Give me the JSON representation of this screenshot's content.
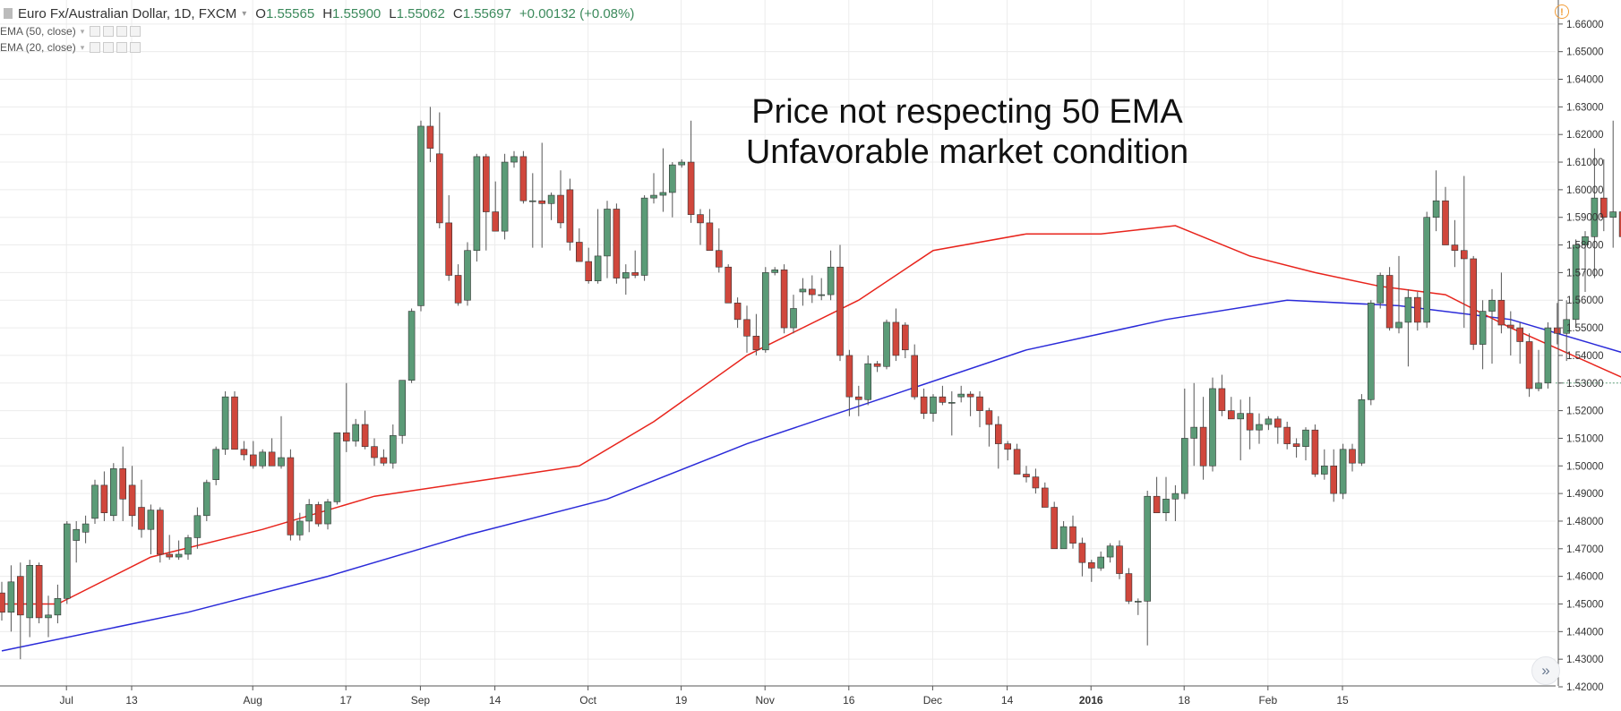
{
  "header": {
    "symbol": "Euro Fx/Australian Dollar, 1D, FXCM",
    "open": {
      "label": "O",
      "value": "1.55565"
    },
    "high": {
      "label": "H",
      "value": "1.55900"
    },
    "low": {
      "label": "L",
      "value": "1.55062"
    },
    "close": {
      "label": "C",
      "value": "1.55697"
    },
    "change": "+0.00132 (+0.08%)"
  },
  "indicators": [
    {
      "label": "EMA (50, close)",
      "color": "#2b2bd9"
    },
    {
      "label": "EMA (20, close)",
      "color": "#e8241c"
    }
  ],
  "annotation": {
    "line1": "Price not respecting 50 EMA",
    "line2": "Unfavorable market condition"
  },
  "icons": {
    "alert": "alert-icon",
    "scroll": "scroll-right-icon",
    "symbol": "symbol-icon"
  },
  "colors": {
    "up": "#5b9b77",
    "down": "#d0473c",
    "grid": "#ececec",
    "ema20": "#e8241c",
    "ema50": "#2b2bd9"
  },
  "chart_data": {
    "type": "candlestick",
    "title": "",
    "x_ticks": [
      "Jul",
      "13",
      "Aug",
      "17",
      "Sep",
      "14",
      "Oct",
      "19",
      "Nov",
      "16",
      "Dec",
      "14",
      "2016",
      "18",
      "Feb",
      "15"
    ],
    "y_ticks": [
      "1.67000",
      "1.66000",
      "1.65000",
      "1.64000",
      "1.63000",
      "1.62000",
      "1.61000",
      "1.60000",
      "1.59000",
      "1.58000",
      "1.57000",
      "1.56000",
      "1.55000",
      "1.54000",
      "1.53000",
      "1.52000",
      "1.51000",
      "1.50000",
      "1.49000",
      "1.48000",
      "1.47000",
      "1.46000",
      "1.45000",
      "1.44000",
      "1.43000",
      "1.42000"
    ],
    "ylim": [
      1.42,
      1.67
    ],
    "grid": true,
    "last_price": "1.53000",
    "candles": [
      [
        1.454,
        1.458,
        1.444,
        1.447
      ],
      [
        1.447,
        1.464,
        1.44,
        1.458
      ],
      [
        1.46,
        1.465,
        1.43,
        1.446
      ],
      [
        1.445,
        1.466,
        1.438,
        1.464
      ],
      [
        1.464,
        1.465,
        1.443,
        1.445
      ],
      [
        1.445,
        1.453,
        1.438,
        1.446
      ],
      [
        1.446,
        1.457,
        1.443,
        1.452
      ],
      [
        1.452,
        1.48,
        1.45,
        1.479
      ],
      [
        1.473,
        1.48,
        1.465,
        1.477
      ],
      [
        1.476,
        1.482,
        1.472,
        1.479
      ],
      [
        1.481,
        1.495,
        1.479,
        1.493
      ],
      [
        1.493,
        1.498,
        1.48,
        1.483
      ],
      [
        1.482,
        1.501,
        1.48,
        1.499
      ],
      [
        1.499,
        1.507,
        1.48,
        1.488
      ],
      [
        1.493,
        1.5,
        1.478,
        1.482
      ],
      [
        1.485,
        1.495,
        1.474,
        1.477
      ],
      [
        1.477,
        1.486,
        1.468,
        1.484
      ],
      [
        1.484,
        1.485,
        1.465,
        1.468
      ],
      [
        1.468,
        1.475,
        1.466,
        1.467
      ],
      [
        1.467,
        1.473,
        1.466,
        1.468
      ],
      [
        1.468,
        1.475,
        1.466,
        1.474
      ],
      [
        1.474,
        1.485,
        1.47,
        1.482
      ],
      [
        1.482,
        1.495,
        1.48,
        1.494
      ],
      [
        1.495,
        1.507,
        1.493,
        1.506
      ],
      [
        1.506,
        1.527,
        1.504,
        1.525
      ],
      [
        1.525,
        1.527,
        1.506,
        1.506
      ],
      [
        1.506,
        1.509,
        1.502,
        1.504
      ],
      [
        1.504,
        1.509,
        1.499,
        1.5
      ],
      [
        1.5,
        1.506,
        1.499,
        1.505
      ],
      [
        1.505,
        1.51,
        1.5,
        1.5
      ],
      [
        1.5,
        1.518,
        1.499,
        1.503
      ],
      [
        1.503,
        1.506,
        1.473,
        1.475
      ],
      [
        1.475,
        1.483,
        1.473,
        1.48
      ],
      [
        1.48,
        1.488,
        1.476,
        1.486
      ],
      [
        1.486,
        1.487,
        1.478,
        1.479
      ],
      [
        1.479,
        1.488,
        1.477,
        1.487
      ],
      [
        1.487,
        1.512,
        1.486,
        1.512
      ],
      [
        1.512,
        1.53,
        1.505,
        1.509
      ],
      [
        1.509,
        1.517,
        1.507,
        1.515
      ],
      [
        1.515,
        1.52,
        1.506,
        1.507
      ],
      [
        1.507,
        1.51,
        1.5,
        1.503
      ],
      [
        1.503,
        1.506,
        1.5,
        1.501
      ],
      [
        1.501,
        1.515,
        1.499,
        1.511
      ],
      [
        1.511,
        1.531,
        1.508,
        1.531
      ],
      [
        1.531,
        1.557,
        1.53,
        1.556
      ],
      [
        1.558,
        1.625,
        1.556,
        1.623
      ],
      [
        1.623,
        1.63,
        1.61,
        1.615
      ],
      [
        1.613,
        1.628,
        1.586,
        1.588
      ],
      [
        1.588,
        1.598,
        1.567,
        1.569
      ],
      [
        1.569,
        1.573,
        1.558,
        1.559
      ],
      [
        1.56,
        1.581,
        1.558,
        1.578
      ],
      [
        1.578,
        1.613,
        1.574,
        1.612
      ],
      [
        1.612,
        1.613,
        1.578,
        1.592
      ],
      [
        1.592,
        1.603,
        1.585,
        1.585
      ],
      [
        1.585,
        1.613,
        1.582,
        1.61
      ],
      [
        1.61,
        1.614,
        1.608,
        1.612
      ],
      [
        1.612,
        1.614,
        1.595,
        1.596
      ],
      [
        1.596,
        1.606,
        1.579,
        1.596
      ],
      [
        1.596,
        1.617,
        1.579,
        1.595
      ],
      [
        1.595,
        1.599,
        1.589,
        1.598
      ],
      [
        1.598,
        1.607,
        1.586,
        1.588
      ],
      [
        1.6,
        1.604,
        1.578,
        1.581
      ],
      [
        1.581,
        1.586,
        1.574,
        1.574
      ],
      [
        1.574,
        1.579,
        1.566,
        1.567
      ],
      [
        1.567,
        1.593,
        1.566,
        1.576
      ],
      [
        1.576,
        1.596,
        1.568,
        1.593
      ],
      [
        1.593,
        1.595,
        1.566,
        1.568
      ],
      [
        1.568,
        1.573,
        1.562,
        1.57
      ],
      [
        1.57,
        1.578,
        1.568,
        1.569
      ],
      [
        1.569,
        1.598,
        1.567,
        1.597
      ],
      [
        1.597,
        1.606,
        1.595,
        1.598
      ],
      [
        1.598,
        1.615,
        1.592,
        1.599
      ],
      [
        1.599,
        1.61,
        1.59,
        1.609
      ],
      [
        1.609,
        1.611,
        1.608,
        1.61
      ],
      [
        1.61,
        1.625,
        1.588,
        1.591
      ],
      [
        1.591,
        1.593,
        1.58,
        1.588
      ],
      [
        1.588,
        1.593,
        1.578,
        1.578
      ],
      [
        1.578,
        1.586,
        1.57,
        1.572
      ],
      [
        1.572,
        1.573,
        1.559,
        1.559
      ],
      [
        1.559,
        1.561,
        1.55,
        1.553
      ],
      [
        1.553,
        1.558,
        1.541,
        1.547
      ],
      [
        1.547,
        1.555,
        1.54,
        1.542
      ],
      [
        1.542,
        1.572,
        1.541,
        1.57
      ],
      [
        1.57,
        1.572,
        1.569,
        1.571
      ],
      [
        1.571,
        1.573,
        1.548,
        1.55
      ],
      [
        1.55,
        1.562,
        1.548,
        1.557
      ],
      [
        1.563,
        1.568,
        1.558,
        1.564
      ],
      [
        1.564,
        1.569,
        1.559,
        1.562
      ],
      [
        1.562,
        1.568,
        1.56,
        1.562
      ],
      [
        1.562,
        1.578,
        1.56,
        1.572
      ],
      [
        1.572,
        1.58,
        1.538,
        1.54
      ],
      [
        1.54,
        1.542,
        1.518,
        1.525
      ],
      [
        1.525,
        1.529,
        1.518,
        1.524
      ],
      [
        1.524,
        1.54,
        1.522,
        1.537
      ],
      [
        1.537,
        1.538,
        1.534,
        1.536
      ],
      [
        1.536,
        1.553,
        1.535,
        1.552
      ],
      [
        1.552,
        1.557,
        1.538,
        1.54
      ],
      [
        1.551,
        1.552,
        1.539,
        1.542
      ],
      [
        1.54,
        1.544,
        1.524,
        1.525
      ],
      [
        1.525,
        1.528,
        1.517,
        1.519
      ],
      [
        1.519,
        1.526,
        1.516,
        1.525
      ],
      [
        1.525,
        1.529,
        1.522,
        1.523
      ],
      [
        1.523,
        1.527,
        1.511,
        1.523
      ],
      [
        1.525,
        1.529,
        1.523,
        1.526
      ],
      [
        1.526,
        1.527,
        1.518,
        1.525
      ],
      [
        1.525,
        1.527,
        1.514,
        1.52
      ],
      [
        1.52,
        1.521,
        1.507,
        1.515
      ],
      [
        1.515,
        1.518,
        1.499,
        1.508
      ],
      [
        1.508,
        1.509,
        1.502,
        1.506
      ],
      [
        1.506,
        1.508,
        1.498,
        1.497
      ],
      [
        1.497,
        1.5,
        1.494,
        1.496
      ],
      [
        1.496,
        1.499,
        1.49,
        1.492
      ],
      [
        1.492,
        1.494,
        1.485,
        1.485
      ],
      [
        1.485,
        1.487,
        1.47,
        1.47
      ],
      [
        1.47,
        1.48,
        1.47,
        1.478
      ],
      [
        1.478,
        1.482,
        1.47,
        1.472
      ],
      [
        1.472,
        1.474,
        1.46,
        1.465
      ],
      [
        1.465,
        1.466,
        1.458,
        1.463
      ],
      [
        1.463,
        1.469,
        1.462,
        1.467
      ],
      [
        1.467,
        1.472,
        1.465,
        1.471
      ],
      [
        1.471,
        1.473,
        1.459,
        1.461
      ],
      [
        1.461,
        1.463,
        1.45,
        1.451
      ],
      [
        1.451,
        1.452,
        1.446,
        1.451
      ],
      [
        1.451,
        1.491,
        1.435,
        1.489
      ],
      [
        1.489,
        1.496,
        1.485,
        1.483
      ],
      [
        1.483,
        1.496,
        1.48,
        1.488
      ],
      [
        1.488,
        1.493,
        1.48,
        1.49
      ],
      [
        1.49,
        1.528,
        1.488,
        1.51
      ],
      [
        1.51,
        1.53,
        1.5,
        1.514
      ],
      [
        1.514,
        1.525,
        1.495,
        1.5
      ],
      [
        1.5,
        1.532,
        1.498,
        1.528
      ],
      [
        1.528,
        1.533,
        1.518,
        1.52
      ],
      [
        1.52,
        1.525,
        1.518,
        1.517
      ],
      [
        1.517,
        1.524,
        1.502,
        1.519
      ],
      [
        1.519,
        1.525,
        1.506,
        1.513
      ],
      [
        1.513,
        1.519,
        1.508,
        1.515
      ],
      [
        1.515,
        1.518,
        1.513,
        1.517
      ],
      [
        1.517,
        1.518,
        1.508,
        1.514
      ],
      [
        1.514,
        1.516,
        1.506,
        1.508
      ],
      [
        1.508,
        1.51,
        1.503,
        1.507
      ],
      [
        1.507,
        1.514,
        1.502,
        1.513
      ],
      [
        1.513,
        1.515,
        1.496,
        1.497
      ],
      [
        1.497,
        1.506,
        1.495,
        1.5
      ],
      [
        1.5,
        1.506,
        1.487,
        1.49
      ],
      [
        1.49,
        1.508,
        1.488,
        1.506
      ],
      [
        1.506,
        1.508,
        1.498,
        1.501
      ],
      [
        1.501,
        1.526,
        1.5,
        1.524
      ],
      [
        1.524,
        1.56,
        1.522,
        1.559
      ],
      [
        1.559,
        1.57,
        1.557,
        1.569
      ],
      [
        1.569,
        1.572,
        1.549,
        1.55
      ],
      [
        1.55,
        1.576,
        1.548,
        1.552
      ],
      [
        1.552,
        1.564,
        1.536,
        1.561
      ],
      [
        1.561,
        1.563,
        1.549,
        1.552
      ],
      [
        1.552,
        1.592,
        1.55,
        1.59
      ],
      [
        1.59,
        1.607,
        1.585,
        1.596
      ],
      [
        1.596,
        1.601,
        1.58,
        1.58
      ],
      [
        1.58,
        1.589,
        1.572,
        1.578
      ],
      [
        1.578,
        1.605,
        1.55,
        1.575
      ],
      [
        1.575,
        1.576,
        1.542,
        1.544
      ],
      [
        1.544,
        1.56,
        1.535,
        1.556
      ],
      [
        1.556,
        1.564,
        1.537,
        1.56
      ],
      [
        1.56,
        1.57,
        1.548,
        1.551
      ],
      [
        1.551,
        1.556,
        1.54,
        1.55
      ],
      [
        1.55,
        1.552,
        1.537,
        1.545
      ],
      [
        1.545,
        1.548,
        1.525,
        1.528
      ],
      [
        1.528,
        1.542,
        1.527,
        1.53
      ],
      [
        1.53,
        1.552,
        1.528,
        1.55
      ],
      [
        1.55,
        1.559,
        1.544,
        1.548
      ],
      [
        1.548,
        1.56,
        1.538,
        1.553
      ],
      [
        1.553,
        1.582,
        1.55,
        1.58
      ],
      [
        1.58,
        1.585,
        1.563,
        1.583
      ],
      [
        1.583,
        1.615,
        1.568,
        1.597
      ],
      [
        1.597,
        1.611,
        1.585,
        1.59
      ],
      [
        1.59,
        1.625,
        1.579,
        1.592
      ],
      [
        1.592,
        1.595,
        1.578,
        1.583
      ],
      [
        1.58,
        1.582,
        1.556,
        1.562
      ],
      [
        1.562,
        1.575,
        1.553,
        1.565
      ],
      [
        1.567,
        1.573,
        1.547,
        1.549
      ],
      [
        1.549,
        1.56,
        1.547,
        1.552
      ],
      [
        1.552,
        1.57,
        1.548,
        1.556
      ],
      [
        1.552,
        1.553,
        1.52,
        1.525
      ],
      [
        1.525,
        1.53,
        1.516,
        1.529
      ],
      [
        1.529,
        1.541,
        1.527,
        1.53
      ]
    ],
    "ema20": [
      [
        0,
        1.45
      ],
      [
        6,
        1.45
      ],
      [
        16,
        1.467
      ],
      [
        28,
        1.477
      ],
      [
        40,
        1.489
      ],
      [
        52,
        1.495
      ],
      [
        62,
        1.5
      ],
      [
        70,
        1.516
      ],
      [
        80,
        1.54
      ],
      [
        92,
        1.56
      ],
      [
        100,
        1.578
      ],
      [
        110,
        1.584
      ],
      [
        118,
        1.584
      ],
      [
        126,
        1.587
      ],
      [
        134,
        1.576
      ],
      [
        141,
        1.57
      ],
      [
        148,
        1.565
      ],
      [
        155,
        1.562
      ],
      [
        162,
        1.55
      ],
      [
        174,
        1.532
      ],
      [
        185,
        1.518
      ],
      [
        194,
        1.5
      ],
      [
        200,
        1.492
      ],
      [
        206,
        1.487
      ],
      [
        213,
        1.496
      ],
      [
        220,
        1.5
      ],
      [
        230,
        1.503
      ],
      [
        236,
        1.502
      ],
      [
        242,
        1.5
      ],
      [
        248,
        1.5
      ],
      [
        254,
        1.51
      ],
      [
        262,
        1.528
      ],
      [
        270,
        1.546
      ],
      [
        278,
        1.548
      ],
      [
        286,
        1.549
      ],
      [
        294,
        1.548
      ],
      [
        300,
        1.551
      ],
      [
        304,
        1.555
      ],
      [
        310,
        1.562
      ],
      [
        316,
        1.565
      ],
      [
        324,
        1.558
      ],
      [
        330,
        1.553
      ]
    ],
    "ema50": [
      [
        0,
        1.433
      ],
      [
        20,
        1.447
      ],
      [
        35,
        1.46
      ],
      [
        50,
        1.475
      ],
      [
        65,
        1.488
      ],
      [
        80,
        1.508
      ],
      [
        95,
        1.525
      ],
      [
        110,
        1.542
      ],
      [
        125,
        1.553
      ],
      [
        138,
        1.56
      ],
      [
        150,
        1.558
      ],
      [
        162,
        1.553
      ],
      [
        175,
        1.54
      ],
      [
        188,
        1.527
      ],
      [
        200,
        1.515
      ],
      [
        212,
        1.51
      ],
      [
        222,
        1.51
      ],
      [
        234,
        1.512
      ],
      [
        246,
        1.51
      ],
      [
        256,
        1.512
      ],
      [
        266,
        1.523
      ],
      [
        278,
        1.533
      ],
      [
        290,
        1.537
      ],
      [
        300,
        1.54
      ],
      [
        312,
        1.548
      ],
      [
        322,
        1.549
      ],
      [
        330,
        1.546
      ]
    ]
  }
}
